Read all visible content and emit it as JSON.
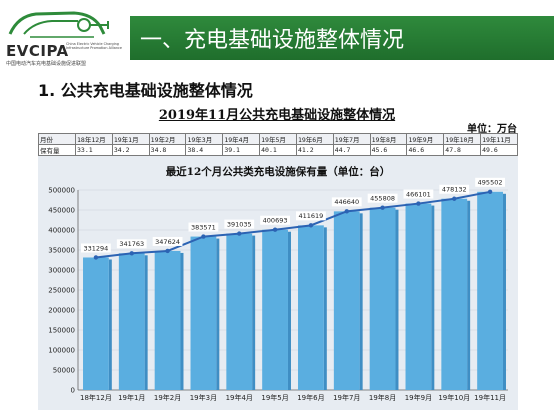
{
  "logo": {
    "name": "EVCIPA",
    "en": "China Electric Vehicle Charging Infrastructure Promotion Alliance",
    "cn": "中国电动汽车充电基础设施促进联盟"
  },
  "header": {
    "title": "一、充电基础设施整体情况"
  },
  "section": {
    "title": "1. 公共充电基础设施整体情况"
  },
  "table_title": "2019年11月公共充电基础设施整体情况",
  "unit": "单位：万台",
  "table": {
    "row_labels": [
      "月份",
      "保有量"
    ],
    "months": [
      "18年12月",
      "19年1月",
      "19年2月",
      "19年3月",
      "19年4月",
      "19年5月",
      "19年6月",
      "19年7月",
      "19年8月",
      "19年9月",
      "19年10月",
      "19年11月"
    ],
    "values": [
      "33.1",
      "34.2",
      "34.8",
      "38.4",
      "39.1",
      "40.1",
      "41.2",
      "44.7",
      "45.6",
      "46.6",
      "47.8",
      "49.6"
    ]
  },
  "colors": {
    "header": "#267a33",
    "bar": "#5aaee0",
    "line": "#2c63b3",
    "label_bg": "#ffffff"
  },
  "chart_data": {
    "type": "bar",
    "title": "最近12个月公共类充电设施保有量（单位：台）",
    "categories": [
      "18年12月",
      "19年1月",
      "19年2月",
      "19年3月",
      "19年4月",
      "19年5月",
      "19年6月",
      "19年7月",
      "19年8月",
      "19年9月",
      "19年10月",
      "19年11月"
    ],
    "values": [
      331294,
      341763,
      347624,
      383571,
      391035,
      400693,
      411619,
      446640,
      455808,
      466101,
      478132,
      495502
    ],
    "overlay_line": true,
    "ylim": [
      0,
      500000
    ],
    "yticks": [
      0,
      50000,
      100000,
      150000,
      200000,
      250000,
      300000,
      350000,
      400000,
      450000,
      500000
    ],
    "grid": true,
    "data_labels": true
  }
}
